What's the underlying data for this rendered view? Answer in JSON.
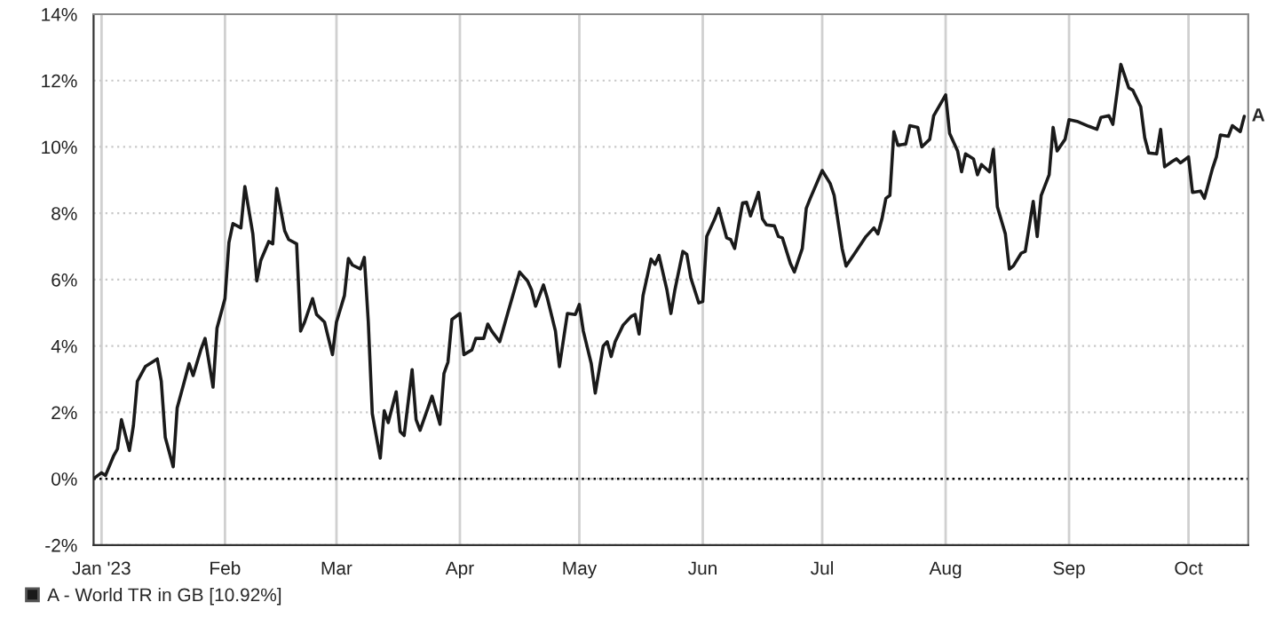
{
  "chart_data": {
    "type": "line",
    "x": [
      "2022-12-30",
      "2023-01-01",
      "2023-01-02",
      "2023-01-04",
      "2023-01-05",
      "2023-01-06",
      "2023-01-08",
      "2023-01-09",
      "2023-01-10",
      "2023-01-12",
      "2023-01-15",
      "2023-01-16",
      "2023-01-17",
      "2023-01-19",
      "2023-01-20",
      "2023-01-22",
      "2023-01-23",
      "2023-01-24",
      "2023-01-26",
      "2023-01-27",
      "2023-01-29",
      "2023-01-30",
      "2023-02-01",
      "2023-02-02",
      "2023-02-03",
      "2023-02-05",
      "2023-02-06",
      "2023-02-08",
      "2023-02-09",
      "2023-02-10",
      "2023-02-12",
      "2023-02-13",
      "2023-02-14",
      "2023-02-16",
      "2023-02-17",
      "2023-02-19",
      "2023-02-20",
      "2023-02-21",
      "2023-02-23",
      "2023-02-24",
      "2023-02-26",
      "2023-02-28",
      "2023-03-01",
      "2023-03-03",
      "2023-03-04",
      "2023-03-05",
      "2023-03-07",
      "2023-03-08",
      "2023-03-09",
      "2023-03-10",
      "2023-03-12",
      "2023-03-13",
      "2023-03-14",
      "2023-03-16",
      "2023-03-17",
      "2023-03-18",
      "2023-03-20",
      "2023-03-21",
      "2023-03-22",
      "2023-03-24",
      "2023-03-25",
      "2023-03-27",
      "2023-03-28",
      "2023-03-29",
      "2023-03-30",
      "2023-04-01",
      "2023-04-02",
      "2023-04-04",
      "2023-04-05",
      "2023-04-07",
      "2023-04-08",
      "2023-04-09",
      "2023-04-11",
      "2023-04-13",
      "2023-04-16",
      "2023-04-18",
      "2023-04-19",
      "2023-04-20",
      "2023-04-22",
      "2023-04-23",
      "2023-04-25",
      "2023-04-26",
      "2023-04-28",
      "2023-04-30",
      "2023-05-01",
      "2023-05-02",
      "2023-05-04",
      "2023-05-05",
      "2023-05-07",
      "2023-05-08",
      "2023-05-09",
      "2023-05-10",
      "2023-05-12",
      "2023-05-14",
      "2023-05-15",
      "2023-05-16",
      "2023-05-17",
      "2023-05-19",
      "2023-05-20",
      "2023-05-21",
      "2023-05-23",
      "2023-05-24",
      "2023-05-25",
      "2023-05-27",
      "2023-05-28",
      "2023-05-29",
      "2023-05-31",
      "2023-06-01",
      "2023-06-02",
      "2023-06-04",
      "2023-06-05",
      "2023-06-07",
      "2023-06-08",
      "2023-06-09",
      "2023-06-11",
      "2023-06-12",
      "2023-06-13",
      "2023-06-15",
      "2023-06-16",
      "2023-06-17",
      "2023-06-19",
      "2023-06-20",
      "2023-06-21",
      "2023-06-23",
      "2023-06-24",
      "2023-06-26",
      "2023-06-27",
      "2023-06-28",
      "2023-07-01",
      "2023-07-03",
      "2023-07-04",
      "2023-07-06",
      "2023-07-07",
      "2023-07-09",
      "2023-07-10",
      "2023-07-12",
      "2023-07-14",
      "2023-07-15",
      "2023-07-16",
      "2023-07-17",
      "2023-07-18",
      "2023-07-19",
      "2023-07-20",
      "2023-07-22",
      "2023-07-23",
      "2023-07-25",
      "2023-07-26",
      "2023-07-28",
      "2023-07-29",
      "2023-08-01",
      "2023-08-02",
      "2023-08-04",
      "2023-08-05",
      "2023-08-06",
      "2023-08-08",
      "2023-08-09",
      "2023-08-10",
      "2023-08-12",
      "2023-08-13",
      "2023-08-14",
      "2023-08-16",
      "2023-08-17",
      "2023-08-18",
      "2023-08-20",
      "2023-08-21",
      "2023-08-23",
      "2023-08-24",
      "2023-08-25",
      "2023-08-27",
      "2023-08-28",
      "2023-08-29",
      "2023-08-31",
      "2023-09-01",
      "2023-09-03",
      "2023-09-06",
      "2023-09-08",
      "2023-09-09",
      "2023-09-11",
      "2023-09-12",
      "2023-09-14",
      "2023-09-16",
      "2023-09-17",
      "2023-09-19",
      "2023-09-20",
      "2023-09-21",
      "2023-09-23",
      "2023-09-24",
      "2023-09-25",
      "2023-09-27",
      "2023-09-28",
      "2023-09-29",
      "2023-10-01",
      "2023-10-02",
      "2023-10-04",
      "2023-10-05",
      "2023-10-07",
      "2023-10-08",
      "2023-10-09",
      "2023-10-11",
      "2023-10-12",
      "2023-10-14",
      "2023-10-15"
    ],
    "series": [
      {
        "name": "A - World TR in GB [10.92%]",
        "color": "#1a1a1a",
        "values": [
          0.0,
          0.18,
          0.1,
          0.68,
          0.9,
          1.78,
          0.85,
          1.6,
          2.94,
          3.38,
          3.61,
          2.94,
          1.25,
          0.36,
          2.14,
          3.02,
          3.47,
          3.11,
          3.91,
          4.23,
          2.76,
          4.54,
          5.43,
          7.12,
          7.69,
          7.56,
          8.81,
          7.38,
          5.96,
          6.58,
          7.15,
          7.08,
          8.75,
          7.47,
          7.21,
          7.08,
          4.45,
          4.72,
          5.43,
          4.95,
          4.72,
          3.74,
          4.72,
          5.52,
          6.64,
          6.44,
          6.32,
          6.67,
          4.72,
          1.96,
          0.62,
          2.05,
          1.69,
          2.62,
          1.42,
          1.3,
          3.29,
          1.78,
          1.46,
          2.14,
          2.49,
          1.64,
          3.17,
          3.51,
          4.8,
          4.98,
          3.74,
          3.88,
          4.23,
          4.23,
          4.66,
          4.45,
          4.13,
          4.98,
          6.23,
          5.96,
          5.69,
          5.2,
          5.84,
          5.43,
          4.45,
          3.38,
          4.98,
          4.95,
          5.25,
          4.45,
          3.47,
          2.58,
          4.0,
          4.13,
          3.68,
          4.13,
          4.63,
          4.89,
          4.95,
          4.36,
          5.52,
          6.62,
          6.46,
          6.73,
          5.69,
          4.98,
          5.69,
          6.85,
          6.76,
          6.05,
          5.3,
          5.34,
          7.3,
          7.83,
          8.15,
          7.26,
          7.21,
          6.94,
          8.31,
          8.33,
          7.92,
          8.63,
          7.83,
          7.65,
          7.62,
          7.3,
          7.26,
          6.49,
          6.23,
          6.94,
          8.15,
          8.45,
          9.29,
          8.9,
          8.54,
          6.94,
          6.41,
          6.76,
          6.94,
          7.3,
          7.56,
          7.38,
          7.83,
          8.45,
          8.54,
          10.46,
          10.05,
          10.09,
          10.64,
          10.59,
          10.0,
          10.23,
          10.94,
          11.57,
          10.41,
          9.88,
          9.25,
          9.79,
          9.64,
          9.16,
          9.47,
          9.25,
          9.93,
          8.19,
          7.38,
          6.32,
          6.41,
          6.8,
          6.85,
          8.36,
          7.3,
          8.54,
          9.16,
          10.59,
          9.88,
          10.23,
          10.82,
          10.77,
          10.62,
          10.53,
          10.89,
          10.94,
          10.68,
          12.49,
          11.78,
          11.71,
          11.21,
          10.28,
          9.82,
          9.79,
          10.53,
          9.4,
          9.57,
          9.64,
          9.52,
          9.7,
          8.63,
          8.67,
          8.45,
          9.34,
          9.7,
          10.36,
          10.32,
          10.64,
          10.46,
          10.92
        ]
      }
    ],
    "xlim": [
      "2022-12-30",
      "2023-10-16"
    ],
    "xticks": [
      {
        "value": "2023-01-01",
        "label": "Jan '23"
      },
      {
        "value": "2023-02-01",
        "label": "Feb"
      },
      {
        "value": "2023-03-01",
        "label": "Mar"
      },
      {
        "value": "2023-04-01",
        "label": "Apr"
      },
      {
        "value": "2023-05-01",
        "label": "May"
      },
      {
        "value": "2023-06-01",
        "label": "Jun"
      },
      {
        "value": "2023-07-01",
        "label": "Jul"
      },
      {
        "value": "2023-08-01",
        "label": "Aug"
      },
      {
        "value": "2023-09-01",
        "label": "Sep"
      },
      {
        "value": "2023-10-01",
        "label": "Oct"
      }
    ],
    "ylim": [
      -2,
      14
    ],
    "yticks": [
      {
        "value": -2,
        "label": "-2%"
      },
      {
        "value": 0,
        "label": "0%"
      },
      {
        "value": 2,
        "label": "2%"
      },
      {
        "value": 4,
        "label": "4%"
      },
      {
        "value": 6,
        "label": "6%"
      },
      {
        "value": 8,
        "label": "8%"
      },
      {
        "value": 10,
        "label": "10%"
      },
      {
        "value": 12,
        "label": "12%"
      },
      {
        "value": 14,
        "label": "14%"
      }
    ],
    "ref_lines": [
      {
        "axis": "y",
        "value": 0,
        "color": "#000000",
        "line_style": "dotted"
      }
    ],
    "annotations": [
      {
        "text": "A",
        "x": "2023-10-15",
        "y": 10.92
      }
    ],
    "grid": true,
    "legend": "bottom left",
    "marker": "none",
    "line_style": "solid"
  }
}
